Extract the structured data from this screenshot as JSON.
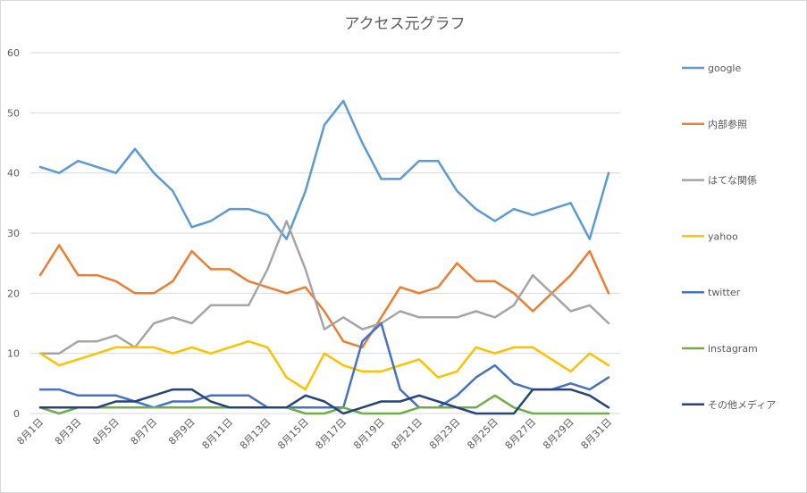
{
  "chart_data": {
    "type": "line",
    "title": "アクセス元グラフ",
    "xlabel": "",
    "ylabel": "",
    "ylim": [
      0,
      60
    ],
    "yticks": [
      0,
      10,
      20,
      30,
      40,
      50,
      60
    ],
    "grid": true,
    "legend_position": "right",
    "x": [
      "8月1日",
      "8月2日",
      "8月3日",
      "8月4日",
      "8月5日",
      "8月6日",
      "8月7日",
      "8月8日",
      "8月9日",
      "8月10日",
      "8月11日",
      "8月12日",
      "8月13日",
      "8月14日",
      "8月15日",
      "8月16日",
      "8月17日",
      "8月18日",
      "8月19日",
      "8月20日",
      "8月21日",
      "8月22日",
      "8月23日",
      "8月24日",
      "8月25日",
      "8月26日",
      "8月27日",
      "8月28日",
      "8月29日",
      "8月30日",
      "8月31日"
    ],
    "xtick_labels": [
      "8月1日",
      "8月3日",
      "8月5日",
      "8月7日",
      "8月9日",
      "8月11日",
      "8月13日",
      "8月15日",
      "8月17日",
      "8月19日",
      "8月21日",
      "8月23日",
      "8月25日",
      "8月27日",
      "8月29日",
      "8月31日"
    ],
    "series": [
      {
        "name": "google",
        "color": "#5b9bd5",
        "values": [
          41,
          40,
          42,
          41,
          40,
          44,
          40,
          37,
          31,
          32,
          34,
          34,
          33,
          29,
          37,
          48,
          52,
          45,
          39,
          39,
          42,
          42,
          37,
          34,
          32,
          34,
          33,
          34,
          35,
          29,
          40
        ]
      },
      {
        "name": "内部参照",
        "color": "#ed7d31",
        "values": [
          23,
          28,
          23,
          23,
          22,
          20,
          20,
          22,
          27,
          24,
          24,
          22,
          21,
          20,
          21,
          17,
          12,
          11,
          16,
          21,
          20,
          21,
          25,
          22,
          22,
          20,
          17,
          20,
          23,
          27,
          20
        ]
      },
      {
        "name": "はてな関係",
        "color": "#a5a5a5",
        "values": [
          10,
          10,
          12,
          12,
          13,
          11,
          15,
          16,
          15,
          18,
          18,
          18,
          24,
          32,
          24,
          14,
          16,
          14,
          15,
          17,
          16,
          16,
          16,
          17,
          16,
          18,
          23,
          20,
          17,
          18,
          15
        ]
      },
      {
        "name": "yahoo",
        "color": "#ffc000",
        "values": [
          10,
          8,
          9,
          10,
          11,
          11,
          11,
          10,
          11,
          10,
          11,
          12,
          11,
          6,
          4,
          10,
          8,
          7,
          7,
          8,
          9,
          6,
          7,
          11,
          10,
          11,
          11,
          9,
          7,
          10,
          8
        ]
      },
      {
        "name": "twitter",
        "color": "#4472c4",
        "values": [
          4,
          4,
          3,
          3,
          3,
          2,
          1,
          2,
          2,
          3,
          3,
          3,
          1,
          1,
          1,
          1,
          1,
          12,
          15,
          4,
          1,
          1,
          3,
          6,
          8,
          5,
          4,
          4,
          5,
          4,
          6
        ]
      },
      {
        "name": "instagram",
        "color": "#70ad47",
        "values": [
          1,
          0,
          1,
          1,
          1,
          1,
          1,
          1,
          1,
          1,
          1,
          1,
          1,
          1,
          0,
          0,
          1,
          0,
          0,
          0,
          1,
          1,
          1,
          1,
          3,
          1,
          0,
          0,
          0,
          0,
          0
        ]
      },
      {
        "name": "その他メディア",
        "color": "#264478",
        "values": [
          1,
          1,
          1,
          1,
          2,
          2,
          3,
          4,
          4,
          2,
          1,
          1,
          1,
          1,
          3,
          2,
          0,
          1,
          2,
          2,
          3,
          2,
          1,
          0,
          0,
          0,
          4,
          4,
          4,
          3,
          1
        ]
      }
    ]
  }
}
